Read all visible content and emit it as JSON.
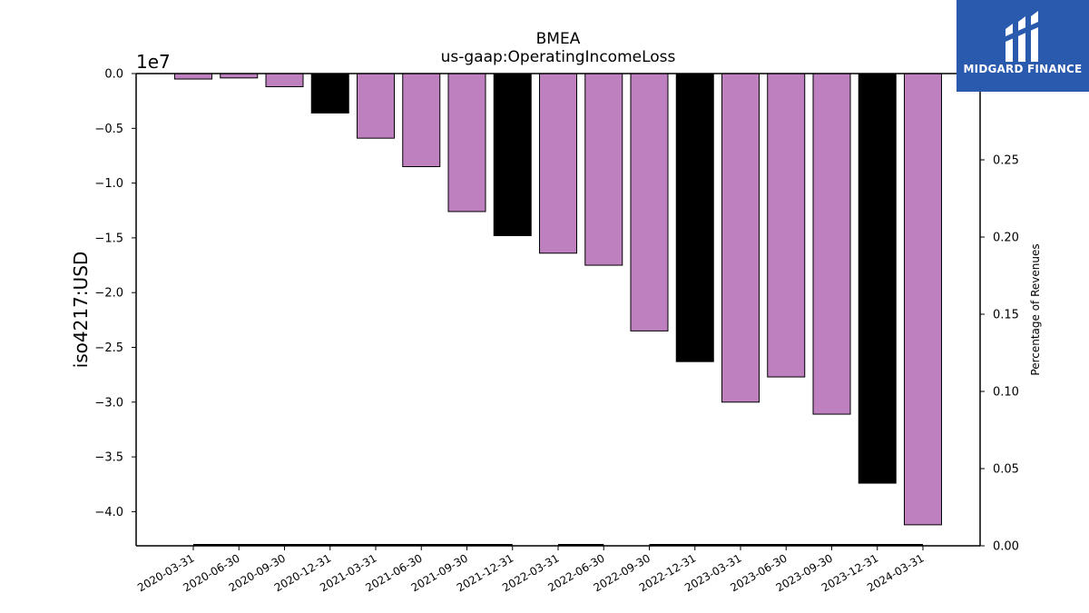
{
  "brand": {
    "name": "MIDGARD FINANCE",
    "logo_icon": "midgard-logo-icon",
    "background": "#2a5aae"
  },
  "chart_data": {
    "type": "bar",
    "title": "BMEA",
    "subtitle": "us-gaap:OperatingIncomeLoss",
    "ylabel": "iso4217:USD",
    "ylabel_right": "Percentage of Revenues",
    "y_offset_text": "1e7",
    "y_scale": 10000000,
    "ylim": [
      -4.3,
      0.0
    ],
    "y_ticks": [
      "0.0",
      "−0.5",
      "−1.0",
      "−1.5",
      "−2.0",
      "−2.5",
      "−3.0",
      "−3.5",
      "−4.0"
    ],
    "y_tick_values": [
      0.0,
      -0.5,
      -1.0,
      -1.5,
      -2.0,
      -2.5,
      -3.0,
      -3.5,
      -4.0
    ],
    "y2lim": [
      0.0,
      0.305
    ],
    "y2_ticks": [
      "0.00",
      "0.05",
      "0.10",
      "0.15",
      "0.20",
      "0.25"
    ],
    "y2_tick_values": [
      0.0,
      0.05,
      0.1,
      0.15,
      0.2,
      0.25
    ],
    "grid": false,
    "colors": {
      "quarter": "#bf80bf",
      "year_end": "#000000"
    },
    "categories": [
      "2020-03-31",
      "2020-06-30",
      "2020-09-30",
      "2020-12-31",
      "2021-03-31",
      "2021-06-30",
      "2021-09-30",
      "2021-12-31",
      "2022-03-31",
      "2022-06-30",
      "2022-09-30",
      "2022-12-31",
      "2023-03-31",
      "2023-06-30",
      "2023-09-30",
      "2023-12-31",
      "2024-03-31"
    ],
    "values": [
      -0.05,
      -0.04,
      -0.12,
      -0.36,
      -0.59,
      -0.85,
      -1.26,
      -1.48,
      -1.64,
      -1.75,
      -2.35,
      -2.63,
      -3.0,
      -2.77,
      -3.11,
      -3.74,
      -4.12
    ],
    "year_end": [
      false,
      false,
      false,
      true,
      false,
      false,
      false,
      true,
      false,
      false,
      false,
      true,
      false,
      false,
      false,
      true,
      false
    ],
    "percentage_of_revenues": [
      0.0,
      0.0,
      0.0,
      0.0,
      0.0,
      0.0,
      0.0,
      0.0,
      0.0,
      0.0,
      0.0,
      0.0,
      0.0,
      0.0,
      0.0,
      0.0,
      0.0
    ]
  }
}
